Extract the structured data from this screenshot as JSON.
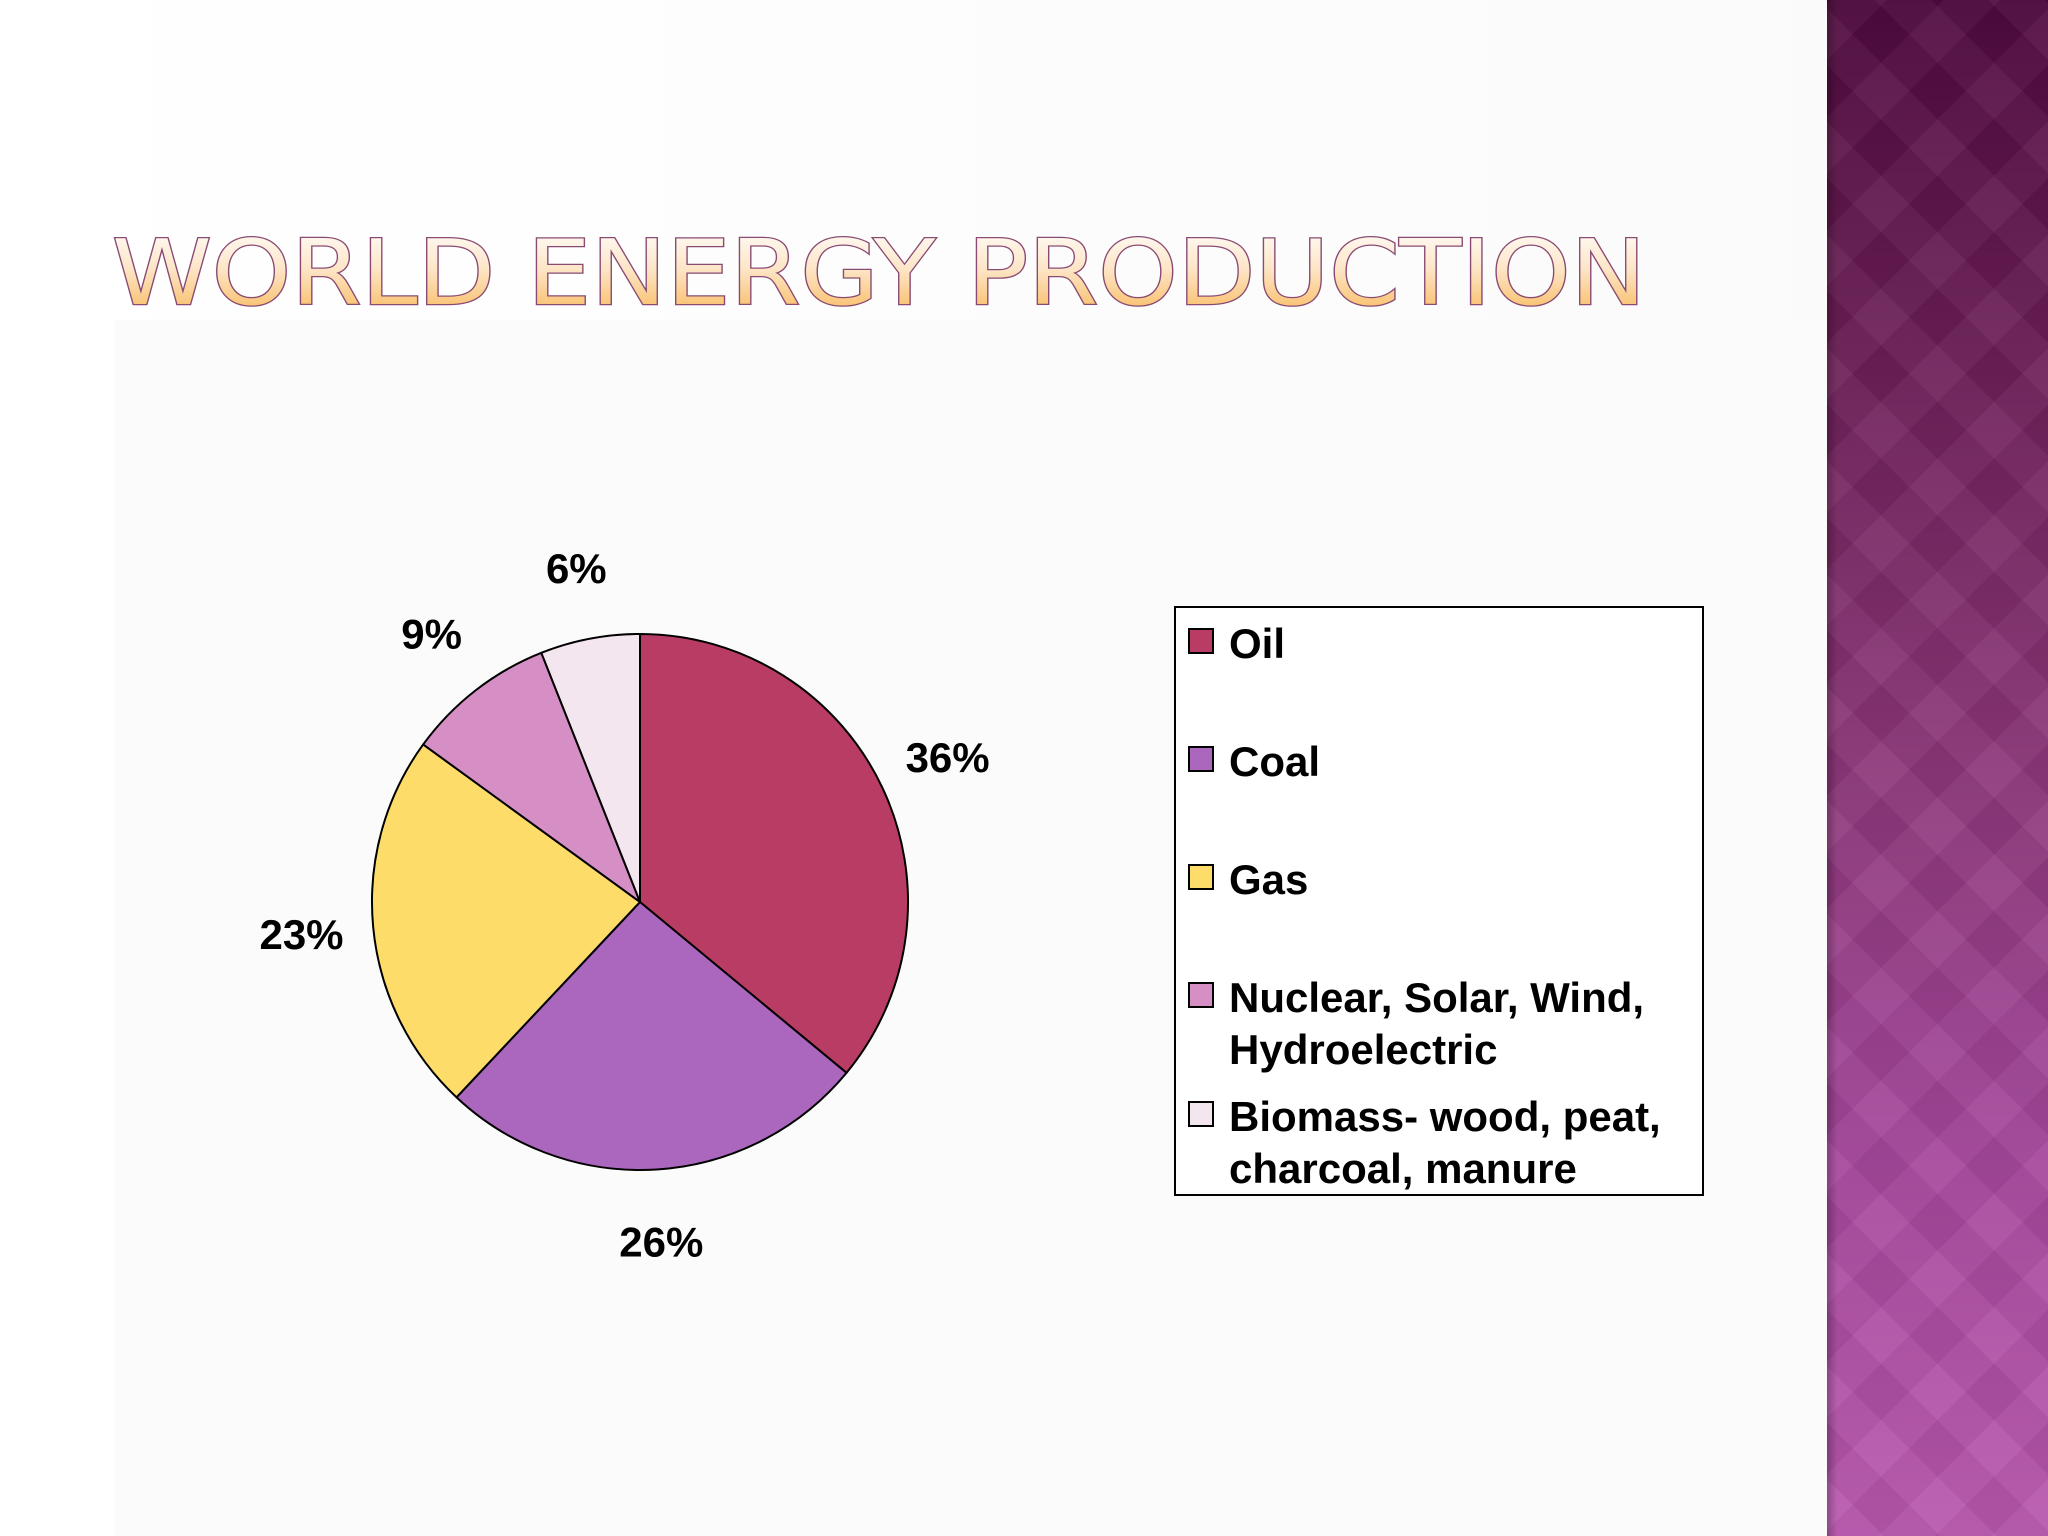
{
  "slide": {
    "title": "WORLD ENERGY PRODUCTION"
  },
  "colors": {
    "title_fill_top": "#ffffff",
    "title_fill_bottom": "#f7b24a",
    "title_stroke": "#8a4a73",
    "side_band_top": "#4f0a3d",
    "side_band_bottom": "#b957ae"
  },
  "chart_data": {
    "type": "pie",
    "title": "",
    "categories": [
      "Oil",
      "Coal",
      "Gas",
      "Nuclear, Solar, Wind, Hydroelectric",
      "Biomass- wood, peat, charcoal, manure"
    ],
    "values": [
      36,
      26,
      23,
      9,
      6
    ],
    "data_labels": [
      "36%",
      "26%",
      "23%",
      "9%",
      "6%"
    ],
    "colors": [
      "#b83c64",
      "#ab66bd",
      "#fddc6a",
      "#d58fc5",
      "#f4e6ee"
    ],
    "start_angle": "12 o'clock",
    "direction": "clockwise",
    "legend_placement": "right"
  }
}
